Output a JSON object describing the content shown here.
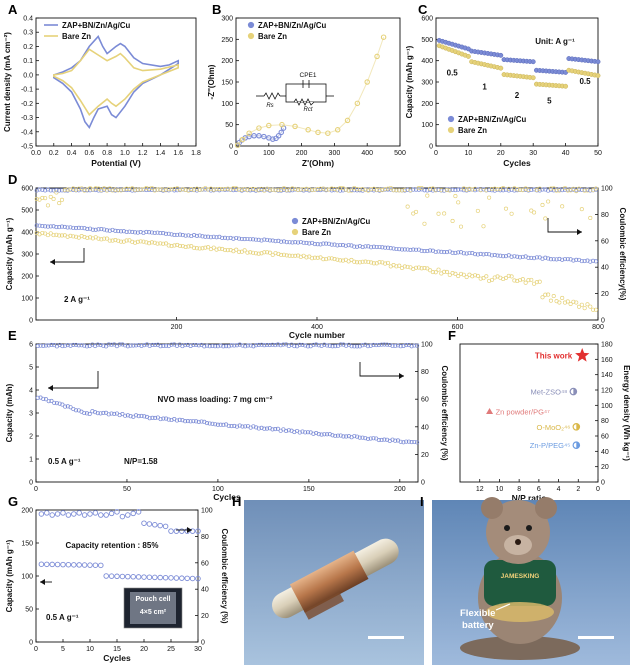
{
  "colors": {
    "blue": "#7b8bd6",
    "yellow": "#e6d27a",
    "red": "#e23030",
    "pink": "#e07a7a",
    "amber": "#d9b84a",
    "lightblue": "#6b9be0",
    "grey": "#8a8fb8"
  },
  "panel_letters": {
    "A": "A",
    "B": "B",
    "C": "C",
    "D": "D",
    "E": "E",
    "F": "F",
    "G": "G",
    "H": "H",
    "I": "I"
  },
  "photo_H": {
    "desc_label": ""
  },
  "photo_I": {
    "label_line1": "Flexible",
    "label_line2": "battery",
    "shirt_text": "JAMESKING"
  },
  "chart_data": [
    {
      "id": "A",
      "type": "line",
      "xlabel": "Potential (V)",
      "ylabel": "Current density (mA cm⁻²)",
      "xlim": [
        0,
        1.8
      ],
      "ylim": [
        -0.5,
        0.4
      ],
      "xticks": [
        "0.0",
        "0.2",
        "0.4",
        "0.6",
        "0.8",
        "1.0",
        "1.2",
        "1.4",
        "1.6",
        "1.8"
      ],
      "yticks": [
        "-0.5",
        "-0.4",
        "-0.3",
        "-0.2",
        "-0.1",
        "0.0",
        "0.1",
        "0.2",
        "0.3",
        "0.4"
      ],
      "legend": [
        "ZAP+BN/Zn/Ag/Cu",
        "Bare Zn"
      ],
      "series": [
        {
          "name": "ZAP+BN/Zn/Ag/Cu",
          "x": [
            0.2,
            0.3,
            0.4,
            0.5,
            0.55,
            0.6,
            0.65,
            0.7,
            0.8,
            0.85,
            0.9,
            1.0,
            1.1,
            1.2,
            1.4,
            1.6,
            1.6,
            1.5,
            1.4,
            1.2,
            1.1,
            1.0,
            0.95,
            0.9,
            0.8,
            0.75,
            0.7,
            0.6,
            0.5,
            0.4,
            0.3,
            0.2
          ],
          "y": [
            -0.02,
            -0.06,
            -0.12,
            -0.24,
            -0.33,
            -0.37,
            -0.3,
            -0.24,
            -0.22,
            -0.28,
            -0.3,
            -0.22,
            -0.12,
            -0.06,
            0.0,
            0.08,
            0.1,
            0.07,
            0.06,
            0.08,
            0.12,
            0.2,
            0.22,
            0.2,
            0.15,
            0.2,
            0.27,
            0.2,
            0.1,
            0.05,
            0.02,
            0.0
          ]
        },
        {
          "name": "Bare Zn",
          "x": [
            0.2,
            0.3,
            0.4,
            0.5,
            0.6,
            0.7,
            0.8,
            0.85,
            0.9,
            1.0,
            1.1,
            1.2,
            1.4,
            1.6,
            1.6,
            1.4,
            1.2,
            1.1,
            1.0,
            0.95,
            0.9,
            0.8,
            0.7,
            0.6,
            0.5,
            0.4,
            0.3,
            0.2
          ],
          "y": [
            -0.01,
            -0.04,
            -0.09,
            -0.18,
            -0.28,
            -0.22,
            -0.17,
            -0.2,
            -0.22,
            -0.17,
            -0.1,
            -0.05,
            0.0,
            0.05,
            0.07,
            0.04,
            0.03,
            0.05,
            0.12,
            0.15,
            0.13,
            0.1,
            0.14,
            0.18,
            0.1,
            0.03,
            0.01,
            0.0
          ]
        }
      ]
    },
    {
      "id": "B",
      "type": "scatter",
      "xlabel": "Z'(Ohm)",
      "ylabel": "-Z''(Ohm)",
      "xlim": [
        0,
        500
      ],
      "ylim": [
        0,
        300
      ],
      "xticks": [
        "0",
        "100",
        "200",
        "300",
        "400",
        "500"
      ],
      "yticks": [
        "0",
        "50",
        "100",
        "150",
        "200",
        "250",
        "300"
      ],
      "legend": [
        "ZAP+BN/Zn/Ag/Cu",
        "Bare Zn"
      ],
      "circuit": {
        "rs": "Rs",
        "rct": "Rct",
        "cpe": "CPE1"
      },
      "series": [
        {
          "name": "ZAP+BN/Zn/Ag/Cu",
          "x": [
            5,
            10,
            18,
            28,
            40,
            55,
            70,
            85,
            100,
            112,
            122,
            130,
            138,
            145
          ],
          "y": [
            2,
            8,
            14,
            19,
            22,
            24,
            24,
            22,
            19,
            16,
            18,
            24,
            32,
            42
          ]
        },
        {
          "name": "Bare Zn",
          "x": [
            5,
            20,
            40,
            70,
            100,
            140,
            180,
            220,
            250,
            280,
            310,
            340,
            370,
            400,
            430,
            450
          ],
          "y": [
            2,
            15,
            30,
            42,
            48,
            50,
            46,
            38,
            32,
            30,
            38,
            60,
            100,
            150,
            210,
            255
          ]
        }
      ]
    },
    {
      "id": "C",
      "type": "scatter",
      "xlabel": "Cycles",
      "ylabel": "Capacity (mAh g⁻¹)",
      "xlim": [
        0,
        50
      ],
      "ylim": [
        0,
        600
      ],
      "xticks": [
        "0",
        "10",
        "20",
        "30",
        "40",
        "50"
      ],
      "yticks": [
        "0",
        "100",
        "200",
        "300",
        "400",
        "500",
        "600"
      ],
      "legend": [
        "ZAP+BN/Zn/Ag/Cu",
        "Bare Zn"
      ],
      "unit": "Unit: A g⁻¹",
      "rate_labels": [
        {
          "t": "0.5",
          "x": 5,
          "y": 330
        },
        {
          "t": "1",
          "x": 15,
          "y": 265
        },
        {
          "t": "2",
          "x": 25,
          "y": 225
        },
        {
          "t": "5",
          "x": 35,
          "y": 200
        },
        {
          "t": "0.5",
          "x": 46,
          "y": 290
        }
      ],
      "series": [
        {
          "name": "ZAP+BN/Zn/Ag/Cu",
          "segments": [
            [
              1,
              10,
              495,
              455
            ],
            [
              11,
              20,
              445,
              425
            ],
            [
              21,
              30,
              405,
              395
            ],
            [
              31,
              40,
              355,
              345
            ],
            [
              41,
              50,
              410,
              395
            ]
          ]
        },
        {
          "name": "Bare Zn",
          "segments": [
            [
              1,
              10,
              470,
              420
            ],
            [
              11,
              20,
              395,
              365
            ],
            [
              21,
              30,
              335,
              320
            ],
            [
              31,
              40,
              290,
              280
            ],
            [
              41,
              50,
              355,
              330
            ]
          ]
        }
      ]
    },
    {
      "id": "D",
      "type": "scatter",
      "xlabel": "Cycle number",
      "ylabel": "Capacity (mAh g⁻¹)",
      "y2label": "Coulombic efficiency(%)",
      "xlim": [
        0,
        800
      ],
      "ylim": [
        0,
        600
      ],
      "y2lim": [
        0,
        100
      ],
      "xticks": [
        "200",
        "400",
        "600",
        "800"
      ],
      "yticks": [
        "0",
        "100",
        "200",
        "300",
        "400",
        "500",
        "600"
      ],
      "y2ticks": [
        "0",
        "20",
        "40",
        "60",
        "80",
        "100"
      ],
      "legend": [
        "ZAP+BN/Zn/Ag/Cu",
        "Bare Zn"
      ],
      "rate": "2 A g⁻¹"
    },
    {
      "id": "E",
      "type": "scatter",
      "xlabel": "Cycles",
      "ylabel": "Capacity (mAh)",
      "y2label": "Coulombic efficiency (%)",
      "xlim": [
        0,
        210
      ],
      "ylim": [
        0,
        6
      ],
      "y2lim": [
        0,
        100
      ],
      "xticks": [
        "0",
        "50",
        "100",
        "150",
        "200"
      ],
      "yticks": [
        "0",
        "1",
        "2",
        "3",
        "4",
        "5",
        "6"
      ],
      "y2ticks": [
        "0",
        "20",
        "40",
        "60",
        "80",
        "100"
      ],
      "annotation": "NVO mass loading: 7 mg cm⁻²",
      "rate": "0.5 A g⁻¹",
      "np": "N/P=1.58"
    },
    {
      "id": "F",
      "type": "scatter",
      "xlabel": "N/P ratio",
      "ylabel": "Energy density (Wh kg⁻¹)",
      "xlim": [
        14,
        0
      ],
      "ylim": [
        0,
        180
      ],
      "xticks": [
        "12",
        "10",
        "8",
        "6",
        "4",
        "2",
        "0"
      ],
      "yticks": [
        "0",
        "20",
        "40",
        "60",
        "80",
        "100",
        "120",
        "140",
        "160",
        "180"
      ],
      "points": [
        {
          "label": "This work",
          "x": 1.6,
          "y": 165
        },
        {
          "label": "Met-ZSO⁴⁸",
          "x": 2.5,
          "y": 118
        },
        {
          "label": "Zn powder/PG⁴⁷",
          "x": 11,
          "y": 92
        },
        {
          "label": "O-MoO₂⁴⁶",
          "x": 2.2,
          "y": 72
        },
        {
          "label": "Zn-P/PEG⁴⁵",
          "x": 2.2,
          "y": 48
        }
      ]
    },
    {
      "id": "G",
      "type": "scatter",
      "xlabel": "Cycles",
      "ylabel": "Capacity (mAh g⁻¹)",
      "y2label": "Coulombic efficiency (%)",
      "xlim": [
        0,
        30
      ],
      "ylim": [
        0,
        200
      ],
      "y2lim": [
        0,
        100
      ],
      "xticks": [
        "0",
        "5",
        "10",
        "15",
        "20",
        "25",
        "30"
      ],
      "yticks": [
        "0",
        "50",
        "100",
        "150",
        "200"
      ],
      "y2ticks": [
        "0",
        "20",
        "40",
        "60",
        "80",
        "100"
      ],
      "annotation": "Capacity retention : 85%",
      "rate": "0.5 A g⁻¹",
      "inset_line1": "Pouch cell",
      "inset_line2": "4×5 cm²"
    }
  ]
}
